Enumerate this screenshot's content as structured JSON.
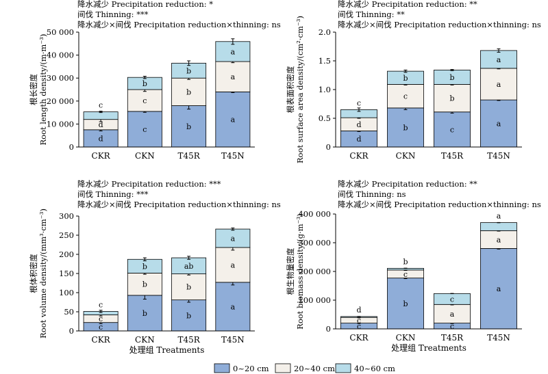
{
  "colors": {
    "c0_20": "#8fadd8",
    "c20_40": "#f4f0ea",
    "c40_60": "#b7dce9"
  },
  "legend": [
    "0~20 cm",
    "20~40 cm",
    "40~60 cm"
  ],
  "xlabel_common": "处理组 Treatments",
  "chart_data": [
    {
      "type": "bar",
      "stacked": true,
      "annotations": [
        "降水减少 Precipitation reduction: *",
        "间伐 Thinning: ***",
        "降水减少×间伐 Precipitation reduction×thinning: ns"
      ],
      "ylabel_cn": "根长密度",
      "ylabel_en": "Root length density/(m·m⁻³)",
      "xlabel": "",
      "ylim": [
        0,
        50000
      ],
      "yticks": [
        "0",
        "10 000",
        "20 000",
        "30 000",
        "40 000",
        "50 000"
      ],
      "categories": [
        "CKR",
        "CKN",
        "T45R",
        "T45N"
      ],
      "series": [
        {
          "name": "0~20 cm",
          "values": [
            7500,
            15500,
            18000,
            24000
          ],
          "errors": [
            500,
            400,
            1500,
            300
          ],
          "letters": [
            "d",
            "c",
            "b",
            "a"
          ]
        },
        {
          "name": "20~40 cm",
          "values": [
            4500,
            9500,
            12000,
            13200
          ],
          "errors": [
            1000,
            800,
            600,
            500
          ],
          "letters": [
            "d",
            "c",
            "b",
            "a"
          ]
        },
        {
          "name": "40~60 cm",
          "values": [
            3300,
            5300,
            6500,
            8700
          ],
          "errors": [
            300,
            500,
            1000,
            1200
          ],
          "letters": [
            "c",
            "b",
            "b",
            "a"
          ]
        }
      ]
    },
    {
      "type": "bar",
      "stacked": true,
      "annotations": [
        "降水减少 Precipitation reduction: **",
        "间伐 Thinning: **",
        "降水减少×间伐 Precipitation reduction×thinning: ns"
      ],
      "ylabel_cn": "根表面积密度",
      "ylabel_en": "Root surface area density/(cm²·cm⁻³)",
      "xlabel": "",
      "ylim": [
        0,
        2.0
      ],
      "yticks": [
        "0",
        "0.5",
        "1.0",
        "1.5",
        "2.0"
      ],
      "categories": [
        "CKR",
        "CKN",
        "T45R",
        "T45N"
      ],
      "series": [
        {
          "name": "0~20 cm",
          "values": [
            0.28,
            0.68,
            0.61,
            0.82
          ],
          "errors": [
            0.01,
            0.03,
            0.02,
            0.01
          ],
          "letters": [
            "d",
            "b",
            "c",
            "a"
          ]
        },
        {
          "name": "20~40 cm",
          "values": [
            0.23,
            0.41,
            0.48,
            0.55
          ],
          "errors": [
            0.01,
            0.01,
            0.01,
            0.01
          ],
          "letters": [
            "d",
            "c",
            "b",
            "a"
          ]
        },
        {
          "name": "40~60 cm",
          "values": [
            0.14,
            0.23,
            0.25,
            0.31
          ],
          "errors": [
            0.03,
            0.02,
            0.01,
            0.03
          ],
          "letters": [
            "c",
            "b",
            "b",
            "a"
          ]
        }
      ]
    },
    {
      "type": "bar",
      "stacked": true,
      "annotations": [
        "降水减少 Precipitation reduction: ***",
        "间伐 Thinning: ***",
        "降水减少×间伐 Precipitation reduction×thinning: ns"
      ],
      "ylabel_cn": "根体积密度",
      "ylabel_en": "Root volume density/(mm³·cm⁻³)",
      "xlabel": "处理组 Treatments",
      "ylim": [
        0,
        300
      ],
      "yticks": [
        "0",
        "50",
        "100",
        "150",
        "200",
        "250",
        "300"
      ],
      "categories": [
        "CKR",
        "CKN",
        "T45R",
        "T45N"
      ],
      "series": [
        {
          "name": "0~20 cm",
          "values": [
            22,
            93,
            81,
            127
          ],
          "errors": [
            3,
            10,
            6,
            7
          ],
          "letters": [
            "c",
            "b",
            "b",
            "a"
          ]
        },
        {
          "name": "20~40 cm",
          "values": [
            20,
            58,
            68,
            91
          ],
          "errors": [
            3,
            3,
            3,
            7
          ],
          "letters": [
            "c",
            "b",
            "b",
            "a"
          ]
        },
        {
          "name": "40~60 cm",
          "values": [
            9,
            36,
            42,
            48
          ],
          "errors": [
            3,
            4,
            4,
            3
          ],
          "letters": [
            "c",
            "b",
            "ab",
            "a"
          ]
        }
      ]
    },
    {
      "type": "bar",
      "stacked": true,
      "annotations": [
        "降水减少 Precipitation reduction: **",
        "间伐 Thinning: ns",
        "降水减少×间伐 Precipitation reduction×thinning: ns"
      ],
      "ylabel_cn": "根生物量密度",
      "ylabel_en": "Root biomass density/(g·m⁻³)",
      "xlabel": "处理组 Treatments",
      "ylim": [
        0,
        400000
      ],
      "yticks": [
        "0",
        "100 000",
        "200 000",
        "300 000",
        "400 000"
      ],
      "categories": [
        "CKR",
        "CKN",
        "T45R",
        "T45N"
      ],
      "series": [
        {
          "name": "0~20 cm",
          "values": [
            20000,
            177000,
            20000,
            280000
          ],
          "errors": [
            1500,
            2000,
            1500,
            2000
          ],
          "letters": [
            "c",
            "b",
            "c",
            "a"
          ]
        },
        {
          "name": "20~40 cm",
          "values": [
            20000,
            28000,
            65000,
            62000
          ],
          "errors": [
            1500,
            1500,
            1500,
            1500
          ],
          "letters": [
            "c",
            "c",
            "a",
            "a"
          ]
        },
        {
          "name": "40~60 cm",
          "values": [
            3000,
            6000,
            38000,
            28000
          ],
          "errors": [
            500,
            500,
            500,
            500
          ],
          "letters": [
            "d",
            "b",
            "c",
            "a"
          ]
        }
      ]
    }
  ]
}
